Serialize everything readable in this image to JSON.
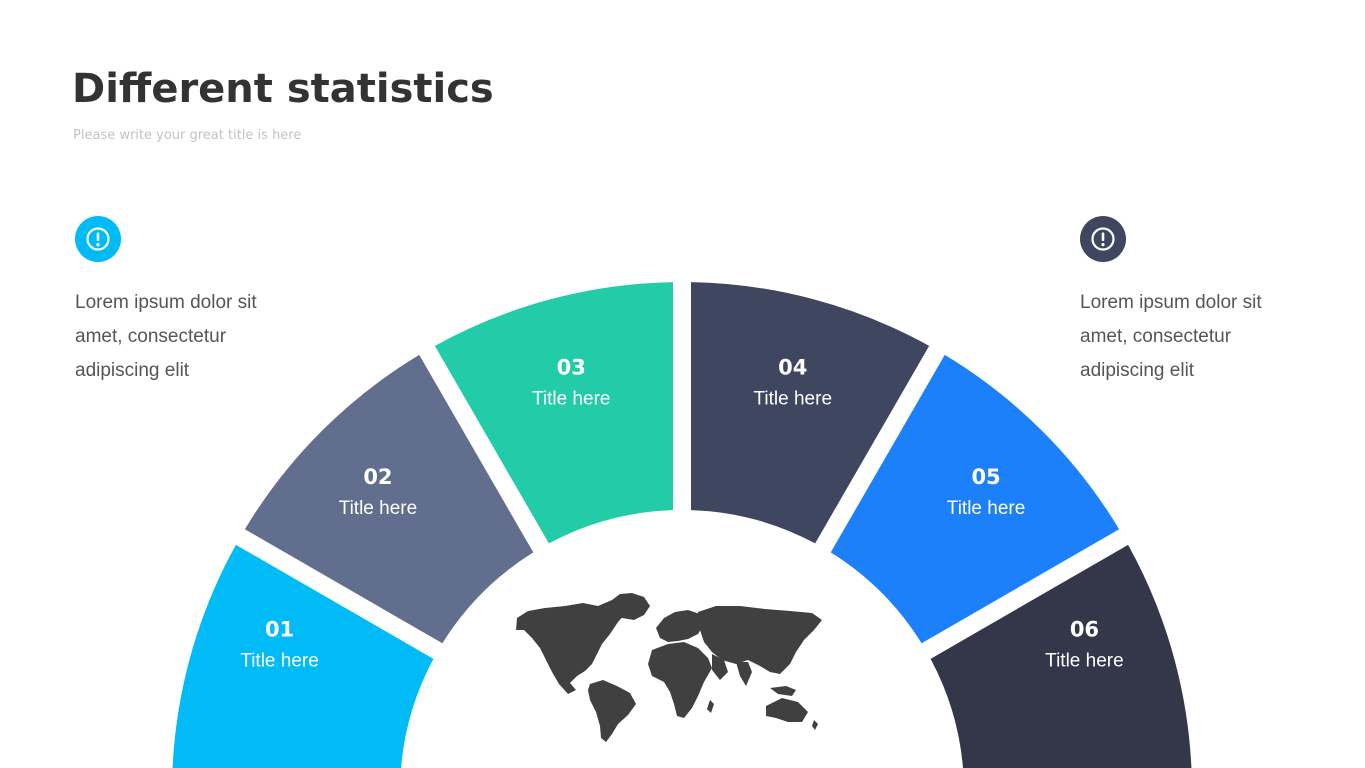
{
  "header": {
    "title": "Different statistics",
    "subtitle": "Please write your great title is here"
  },
  "left_note": {
    "icon": "exclamation-circle-icon",
    "color": "#00bbf6",
    "text": "Lorem ipsum dolor sit amet, consectetur adipiscing elit"
  },
  "right_note": {
    "icon": "exclamation-circle-icon",
    "color": "#3f4760",
    "text": "Lorem ipsum dolor sit amet, consectetur adipiscing elit"
  },
  "segments": [
    {
      "number": "01",
      "label": "Title here",
      "color": "#00bbf6"
    },
    {
      "number": "02",
      "label": "Title here",
      "color": "#626e8e"
    },
    {
      "number": "03",
      "label": "Title here",
      "color": "#23cca9"
    },
    {
      "number": "04",
      "label": "Title here",
      "color": "#3f4760"
    },
    {
      "number": "05",
      "label": "Title here",
      "color": "#1b80fa"
    },
    {
      "number": "06",
      "label": "Title here",
      "color": "#333749"
    }
  ],
  "center": {
    "icon": "world-map-icon",
    "color": "#404040"
  }
}
